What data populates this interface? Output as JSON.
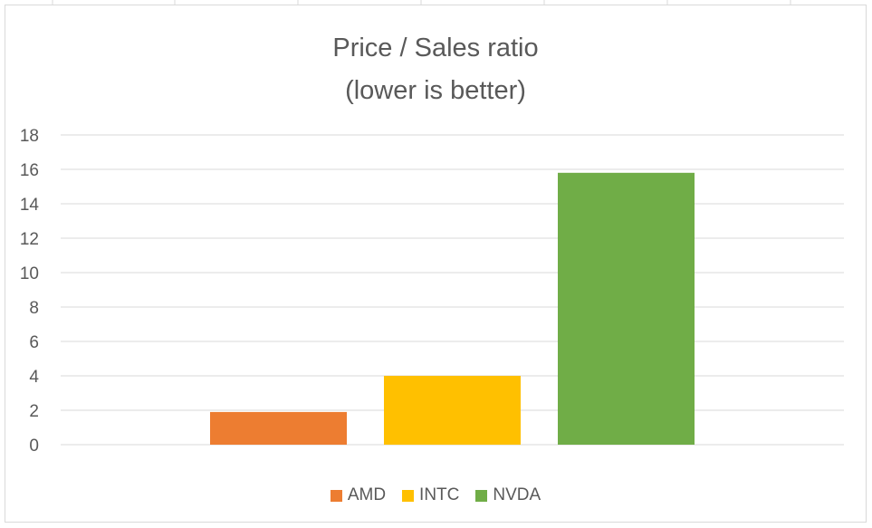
{
  "chart_data": {
    "type": "bar",
    "title": "Price / Sales ratio",
    "subtitle": "(lower is better)",
    "xlabel": "",
    "ylabel": "",
    "ylim": [
      0,
      18
    ],
    "yticks": [
      0,
      2,
      4,
      6,
      8,
      10,
      12,
      14,
      16,
      18
    ],
    "grid": true,
    "legend_position": "bottom",
    "series": [
      {
        "name": "AMD",
        "value": 1.9,
        "color": "#ED7D31"
      },
      {
        "name": "INTC",
        "value": 4.0,
        "color": "#FFC000"
      },
      {
        "name": "NVDA",
        "value": 15.8,
        "color": "#70AD47"
      }
    ]
  }
}
